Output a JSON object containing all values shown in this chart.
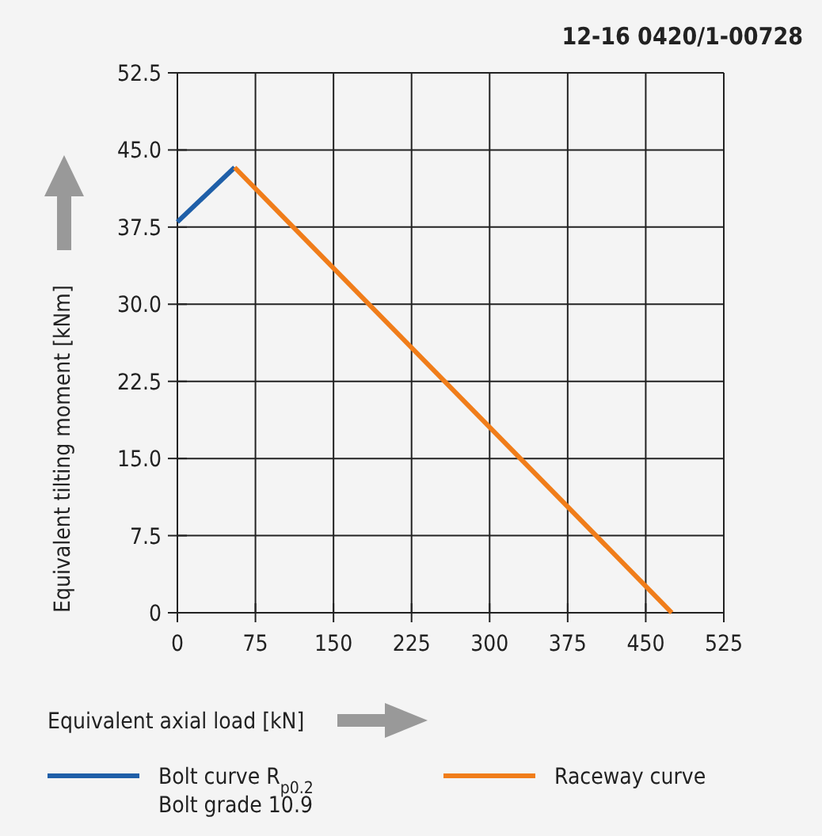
{
  "chart_data": {
    "type": "line",
    "xlabel": "Equivalent axial load [kN]",
    "ylabel": "Equivalent tilting moment [kNm]",
    "annotations": [
      "12-16 0420/1-00728"
    ],
    "series": [
      {
        "name": "Bolt curve  R$_{p0.2}$\nBolt grade 10.9",
        "color": "#1f5fa8",
        "x": [
          0,
          55
        ],
        "values": [
          38,
          43.3
        ]
      },
      {
        "name": "Raceway curve",
        "color": "#f07d1a",
        "x": [
          55,
          475
        ],
        "values": [
          43.3,
          0
        ]
      }
    ],
    "xlim": [
      0,
      525
    ],
    "xticks": [
      0,
      75,
      150,
      225,
      300,
      375,
      450,
      525
    ],
    "ylim": [
      0,
      52.5
    ],
    "yticks": [
      {
        "value": 0,
        "label": "0"
      },
      {
        "value": 7.5,
        "label": "7.5"
      },
      {
        "value": 15,
        "label": "15.0"
      },
      {
        "value": 22.5,
        "label": "22.5"
      },
      {
        "value": 30,
        "label": "30.0"
      },
      {
        "value": 37.5,
        "label": "37.5"
      },
      {
        "value": 45,
        "label": "45.0"
      },
      {
        "value": 52.5,
        "label": "52.5"
      }
    ],
    "grid": true,
    "legend": "bottom",
    "line_style": "solid",
    "marker": "none"
  }
}
